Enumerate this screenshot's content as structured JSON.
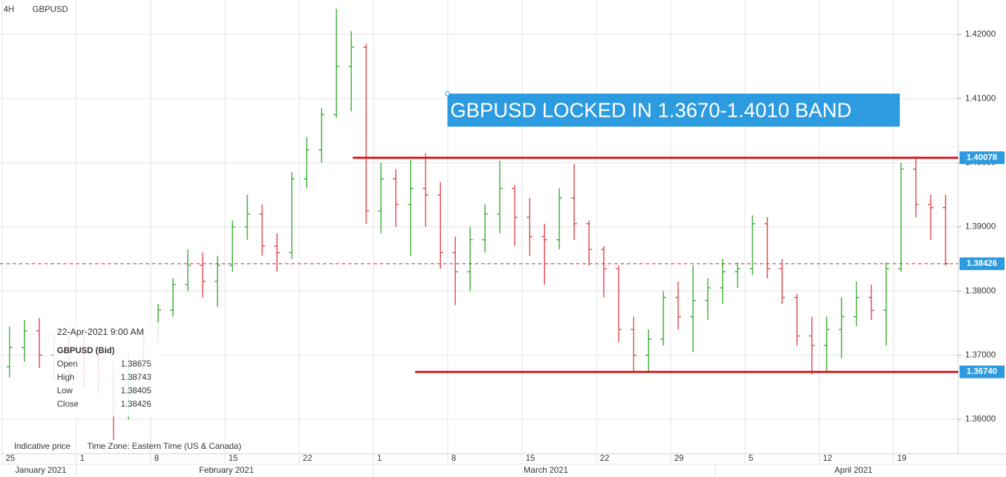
{
  "header": {
    "interval": "4H",
    "symbol": "GBPUSD"
  },
  "chart_data": {
    "type": "ohlc",
    "categories": [
      "25",
      null,
      null,
      null,
      null,
      "1",
      null,
      null,
      null,
      null,
      "8",
      null,
      null,
      null,
      null,
      "15",
      null,
      null,
      null,
      null,
      "22",
      null,
      null,
      null,
      null,
      "1",
      null,
      null,
      null,
      null,
      "8",
      null,
      null,
      null,
      null,
      "15",
      null,
      null,
      null,
      null,
      "22",
      null,
      null,
      null,
      null,
      "29",
      null,
      null,
      null,
      null,
      "5",
      null,
      null,
      null,
      null,
      "12",
      null,
      null,
      null,
      null,
      "19",
      null,
      null,
      null
    ],
    "months": [
      "January 2021",
      "February 2021",
      "March 2021",
      "April 2021"
    ],
    "open": [
      1.3682,
      1.3712,
      1.3738,
      1.37,
      1.3718,
      1.3706,
      1.3675,
      1.366,
      1.3625,
      1.369,
      1.3725,
      1.377,
      1.381,
      1.384,
      1.3815,
      1.384,
      1.39,
      1.392,
      1.387,
      1.386,
      1.3975,
      1.402,
      1.4075,
      1.415,
      1.418,
      1.3925,
      1.3975,
      1.3935,
      1.396,
      1.395,
      1.386,
      1.383,
      1.388,
      1.392,
      1.396,
      1.3915,
      1.3885,
      1.388,
      1.3945,
      1.3905,
      1.3865,
      1.3835,
      1.374,
      1.37,
      1.3725,
      1.379,
      1.376,
      1.3785,
      1.3805,
      1.383,
      1.3835,
      1.3905,
      1.3835,
      1.379,
      1.373,
      1.3715,
      1.374,
      1.376,
      1.379,
      1.377,
      1.3835,
      1.399,
      1.3935,
      1.393
    ],
    "high": [
      1.3745,
      1.3755,
      1.3758,
      1.3735,
      1.3745,
      1.373,
      1.37,
      1.369,
      1.3705,
      1.374,
      1.378,
      1.382,
      1.3865,
      1.386,
      1.3855,
      1.391,
      1.395,
      1.3935,
      1.389,
      1.3985,
      1.404,
      1.4085,
      1.424,
      1.4205,
      1.4185,
      1.4,
      1.399,
      1.4005,
      1.4015,
      1.397,
      1.3885,
      1.39,
      1.3935,
      1.4003,
      1.3965,
      1.3945,
      1.3905,
      1.396,
      1.3998,
      1.391,
      1.387,
      1.384,
      1.376,
      1.374,
      1.38,
      1.3815,
      1.384,
      1.382,
      1.385,
      1.3845,
      1.3918,
      1.3915,
      1.385,
      1.3795,
      1.376,
      1.376,
      1.379,
      1.3815,
      1.381,
      1.3845,
      1.4,
      1.401,
      1.395,
      1.395
    ],
    "low": [
      1.3665,
      1.369,
      1.368,
      1.366,
      1.367,
      1.365,
      1.364,
      1.3568,
      1.36,
      1.367,
      1.3715,
      1.376,
      1.38,
      1.379,
      1.3775,
      1.383,
      1.388,
      1.3855,
      1.383,
      1.385,
      1.396,
      1.4,
      1.407,
      1.408,
      1.3905,
      1.389,
      1.39,
      1.3855,
      1.39,
      1.3835,
      1.3778,
      1.38,
      1.386,
      1.389,
      1.387,
      1.3855,
      1.381,
      1.3865,
      1.388,
      1.384,
      1.379,
      1.372,
      1.3675,
      1.3672,
      1.3715,
      1.374,
      1.3705,
      1.3755,
      1.378,
      1.3805,
      1.3825,
      1.382,
      1.378,
      1.3715,
      1.367,
      1.3672,
      1.3695,
      1.3745,
      1.3755,
      1.3715,
      1.383,
      1.3915,
      1.388,
      1.384
    ],
    "close": [
      1.3712,
      1.3738,
      1.37,
      1.3718,
      1.3706,
      1.3675,
      1.366,
      1.3625,
      1.369,
      1.3725,
      1.377,
      1.381,
      1.384,
      1.3815,
      1.384,
      1.39,
      1.392,
      1.387,
      1.386,
      1.3975,
      1.402,
      1.4075,
      1.415,
      1.418,
      1.3925,
      1.3975,
      1.3935,
      1.396,
      1.395,
      1.386,
      1.383,
      1.388,
      1.392,
      1.396,
      1.3915,
      1.3885,
      1.388,
      1.3945,
      1.3905,
      1.3865,
      1.3835,
      1.374,
      1.37,
      1.3725,
      1.379,
      1.376,
      1.3785,
      1.3805,
      1.383,
      1.3835,
      1.3905,
      1.3835,
      1.379,
      1.373,
      1.3715,
      1.374,
      1.376,
      1.379,
      1.377,
      1.3835,
      1.399,
      1.3935,
      1.393,
      1.38426
    ],
    "up_color": "#3fae3a",
    "down_color": "#e5484d",
    "level_color": "#e3141b",
    "box_color": "#2d9be0",
    "ylim": [
      1.35463,
      1.42537
    ],
    "yticks": [
      {
        "value": 1.36,
        "label": "1.36000"
      },
      {
        "value": 1.37,
        "label": "1.37000"
      },
      {
        "value": 1.38,
        "label": "1.38000"
      },
      {
        "value": 1.39,
        "label": "1.39000"
      },
      {
        "value": 1.4,
        "label": "1.40000"
      },
      {
        "value": 1.41,
        "label": "1.41000"
      },
      {
        "value": 1.42,
        "label": "1.42000"
      }
    ],
    "grid": true,
    "annotation": "GBPUSD LOCKED IN 1.3670-1.4010 BAND",
    "resistance": 1.40078,
    "support": {
      "value": 1.3674,
      "label": "1.36740"
    },
    "last_price": 1.38426
  },
  "info_box": {
    "timestamp": "22-Apr-2021 9:00 AM",
    "title": "GBPUSD (Bid)",
    "rows": [
      [
        "Open",
        1.38675
      ],
      [
        "High",
        1.38743
      ],
      [
        "Low",
        1.38405
      ],
      [
        "Close",
        1.38426
      ]
    ]
  },
  "footer": {
    "note": "Indicative price",
    "timezone": "Time Zone: Eastern Time (US & Canada)"
  }
}
